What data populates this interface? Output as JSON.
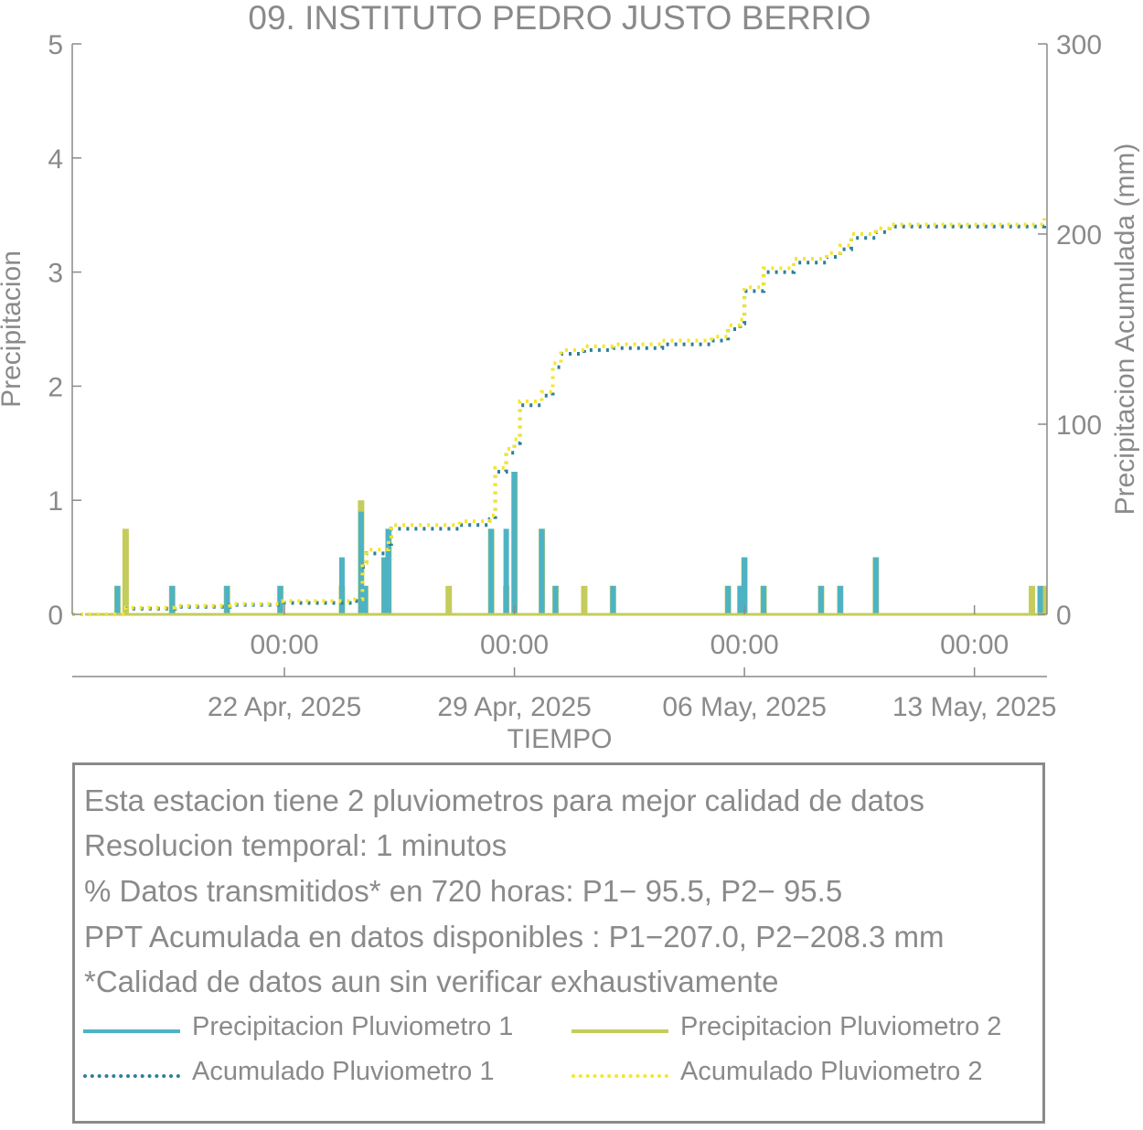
{
  "title": "09. INSTITUTO PEDRO JUSTO BERRIO",
  "colors": {
    "p1": "#4db3c4",
    "p2": "#c4cc5c",
    "acum1": "#2e7f9a",
    "acum2": "#f5e62a",
    "text": "#8a8a8a"
  },
  "chart_data": {
    "type": "bar",
    "xlabel": "TIEMPO",
    "ylabel_left": "Precipitacion",
    "ylabel_right": "Precipitacion Acumulada (mm)",
    "ylim_left": [
      0,
      5
    ],
    "ylim_right": [
      0,
      300
    ],
    "yticks_left": [
      "0",
      "1",
      "2",
      "3",
      "4",
      "5"
    ],
    "yticks_right": [
      "0",
      "100",
      "200",
      "300"
    ],
    "xlim_days": [
      "2025-04-15 13:00",
      "2025-05-15 05:00"
    ],
    "x_ticks": [
      {
        "date": "2025-04-22 00:00",
        "time": "00:00",
        "day": "22 Apr, 2025"
      },
      {
        "date": "2025-04-29 00:00",
        "time": "00:00",
        "day": "29 Apr, 2025"
      },
      {
        "date": "2025-05-06 00:00",
        "time": "00:00",
        "day": "06 May, 2025"
      },
      {
        "date": "2025-05-13 00:00",
        "time": "00:00",
        "day": "13 May, 2025"
      }
    ],
    "series": [
      {
        "name": "Precipitacion Pluviometro 1",
        "kind": "bar",
        "points": [
          [
            "2025-04-16 22:00",
            0.25
          ],
          [
            "2025-04-18 14:00",
            0.25
          ],
          [
            "2025-04-20 06:00",
            0.25
          ],
          [
            "2025-04-21 21:00",
            0.25
          ],
          [
            "2025-04-23 18:00",
            0.5
          ],
          [
            "2025-04-24 08:00",
            0.9
          ],
          [
            "2025-04-24 11:00",
            0.25
          ],
          [
            "2025-04-25 01:00",
            0.5
          ],
          [
            "2025-04-25 04:00",
            0.75
          ],
          [
            "2025-04-28 07:00",
            0.75
          ],
          [
            "2025-04-28 18:00",
            0.75
          ],
          [
            "2025-04-29 00:00",
            1.25
          ],
          [
            "2025-04-29 20:00",
            0.75
          ],
          [
            "2025-04-30 06:00",
            0.25
          ],
          [
            "2025-05-02 00:00",
            0.25
          ],
          [
            "2025-05-05 12:00",
            0.25
          ],
          [
            "2025-05-05 21:00",
            0.25
          ],
          [
            "2025-05-06 00:00",
            0.5
          ],
          [
            "2025-05-06 14:00",
            0.25
          ],
          [
            "2025-05-08 08:00",
            0.25
          ],
          [
            "2025-05-08 22:00",
            0.25
          ],
          [
            "2025-05-10 00:00",
            0.5
          ],
          [
            "2025-05-15 00:00",
            0.25
          ]
        ]
      },
      {
        "name": "Precipitacion Pluviometro 2",
        "kind": "bar",
        "points": [
          [
            "2025-04-16 22:00",
            0.25
          ],
          [
            "2025-04-17 04:00",
            0.75
          ],
          [
            "2025-04-18 14:00",
            0.25
          ],
          [
            "2025-04-20 06:00",
            0.25
          ],
          [
            "2025-04-21 21:00",
            0.25
          ],
          [
            "2025-04-23 18:00",
            0.25
          ],
          [
            "2025-04-24 08:00",
            1.0
          ],
          [
            "2025-04-24 11:00",
            0.25
          ],
          [
            "2025-04-25 01:00",
            0.5
          ],
          [
            "2025-04-25 04:00",
            0.75
          ],
          [
            "2025-04-27 00:00",
            0.25
          ],
          [
            "2025-04-28 07:00",
            0.75
          ],
          [
            "2025-04-28 18:00",
            0.25
          ],
          [
            "2025-04-29 00:00",
            1.25
          ],
          [
            "2025-04-29 20:00",
            0.75
          ],
          [
            "2025-04-30 06:00",
            0.25
          ],
          [
            "2025-05-01 03:00",
            0.25
          ],
          [
            "2025-05-02 00:00",
            0.25
          ],
          [
            "2025-05-05 12:00",
            0.25
          ],
          [
            "2025-05-05 21:00",
            0.25
          ],
          [
            "2025-05-06 00:00",
            0.5
          ],
          [
            "2025-05-06 14:00",
            0.25
          ],
          [
            "2025-05-08 08:00",
            0.25
          ],
          [
            "2025-05-08 22:00",
            0.25
          ],
          [
            "2025-05-10 00:00",
            0.5
          ],
          [
            "2025-05-14 18:00",
            0.25
          ],
          [
            "2025-05-15 03:00",
            0.25
          ]
        ]
      },
      {
        "name": "Acumulado Pluviometro 1",
        "kind": "line",
        "points": [
          [
            "2025-04-15 13:00",
            0
          ],
          [
            "2025-04-16 20:00",
            0
          ],
          [
            "2025-04-17 04:00",
            3
          ],
          [
            "2025-04-18 14:00",
            3
          ],
          [
            "2025-04-18 16:00",
            4
          ],
          [
            "2025-04-20 06:00",
            4
          ],
          [
            "2025-04-20 08:00",
            5
          ],
          [
            "2025-04-21 21:00",
            5
          ],
          [
            "2025-04-21 23:00",
            6
          ],
          [
            "2025-04-23 18:00",
            6
          ],
          [
            "2025-04-24 02:00",
            7
          ],
          [
            "2025-04-24 09:00",
            25
          ],
          [
            "2025-04-24 12:00",
            32
          ],
          [
            "2025-04-25 04:00",
            37
          ],
          [
            "2025-04-25 06:00",
            45
          ],
          [
            "2025-04-27 00:00",
            45
          ],
          [
            "2025-04-27 08:00",
            47
          ],
          [
            "2025-04-28 06:00",
            50
          ],
          [
            "2025-04-28 10:00",
            75
          ],
          [
            "2025-04-28 18:00",
            85
          ],
          [
            "2025-04-29 00:00",
            90
          ],
          [
            "2025-04-29 04:00",
            110
          ],
          [
            "2025-04-29 20:00",
            115
          ],
          [
            "2025-04-30 04:00",
            130
          ],
          [
            "2025-04-30 10:00",
            137
          ],
          [
            "2025-05-01 03:00",
            139
          ],
          [
            "2025-05-02 00:00",
            140
          ],
          [
            "2025-05-03 12:00",
            142
          ],
          [
            "2025-05-05 00:00",
            144
          ],
          [
            "2025-05-05 12:00",
            150
          ],
          [
            "2025-05-05 21:00",
            153
          ],
          [
            "2025-05-06 00:00",
            170
          ],
          [
            "2025-05-06 14:00",
            180
          ],
          [
            "2025-05-07 12:00",
            185
          ],
          [
            "2025-05-08 12:00",
            188
          ],
          [
            "2025-05-08 22:00",
            192
          ],
          [
            "2025-05-09 06:00",
            198
          ],
          [
            "2025-05-10 00:00",
            201
          ],
          [
            "2025-05-10 10:00",
            204
          ],
          [
            "2025-05-13 00:00",
            204
          ],
          [
            "2025-05-14 18:00",
            204
          ],
          [
            "2025-05-15 03:00",
            207
          ]
        ]
      },
      {
        "name": "Acumulado Pluviometro 2",
        "kind": "line",
        "points": [
          [
            "2025-04-15 13:00",
            0
          ],
          [
            "2025-04-16 20:00",
            0
          ],
          [
            "2025-04-17 04:00",
            3.5
          ],
          [
            "2025-04-18 14:00",
            3.5
          ],
          [
            "2025-04-18 16:00",
            4.5
          ],
          [
            "2025-04-20 06:00",
            4.5
          ],
          [
            "2025-04-20 08:00",
            5.5
          ],
          [
            "2025-04-21 21:00",
            5.5
          ],
          [
            "2025-04-21 23:00",
            7
          ],
          [
            "2025-04-23 18:00",
            7
          ],
          [
            "2025-04-24 02:00",
            8
          ],
          [
            "2025-04-24 09:00",
            27
          ],
          [
            "2025-04-24 12:00",
            34
          ],
          [
            "2025-04-25 04:00",
            39
          ],
          [
            "2025-04-25 06:00",
            47
          ],
          [
            "2025-04-27 00:00",
            47
          ],
          [
            "2025-04-27 08:00",
            49
          ],
          [
            "2025-04-28 06:00",
            52
          ],
          [
            "2025-04-28 10:00",
            77
          ],
          [
            "2025-04-28 18:00",
            87
          ],
          [
            "2025-04-29 00:00",
            92
          ],
          [
            "2025-04-29 04:00",
            112
          ],
          [
            "2025-04-29 20:00",
            117
          ],
          [
            "2025-04-30 04:00",
            132
          ],
          [
            "2025-04-30 10:00",
            139
          ],
          [
            "2025-05-01 03:00",
            141
          ],
          [
            "2025-05-02 00:00",
            142
          ],
          [
            "2025-05-03 12:00",
            144
          ],
          [
            "2025-05-05 00:00",
            146
          ],
          [
            "2025-05-05 12:00",
            152
          ],
          [
            "2025-05-05 21:00",
            155
          ],
          [
            "2025-05-06 00:00",
            172
          ],
          [
            "2025-05-06 14:00",
            182
          ],
          [
            "2025-05-07 12:00",
            187
          ],
          [
            "2025-05-08 12:00",
            190
          ],
          [
            "2025-05-08 22:00",
            194
          ],
          [
            "2025-05-09 06:00",
            200
          ],
          [
            "2025-05-10 00:00",
            203
          ],
          [
            "2025-05-10 10:00",
            205
          ],
          [
            "2025-05-13 00:00",
            205
          ],
          [
            "2025-05-14 18:00",
            205
          ],
          [
            "2025-05-15 03:00",
            208.3
          ]
        ]
      }
    ]
  },
  "info": {
    "lines": [
      "Esta estacion tiene 2 pluviometros para mejor calidad de datos",
      "Resolucion temporal: 1 minutos",
      "% Datos transmitidos* en 720 horas: P1− 95.5, P2− 95.5",
      "PPT Acumulada en datos disponibles : P1−207.0, P2−208.3 mm",
      "*Calidad de datos aun sin verificar exhaustivamente"
    ],
    "legend": [
      {
        "label": "Precipitacion Pluviometro 1",
        "style": "solid",
        "color": "#4db3c4"
      },
      {
        "label": "Precipitacion Pluviometro 2",
        "style": "solid",
        "color": "#c4cc5c"
      },
      {
        "label": "Acumulado Pluviometro 1",
        "style": "dotted",
        "color": "#2e7f9a"
      },
      {
        "label": "Acumulado Pluviometro 2",
        "style": "dotted",
        "color": "#f5e62a"
      }
    ]
  }
}
